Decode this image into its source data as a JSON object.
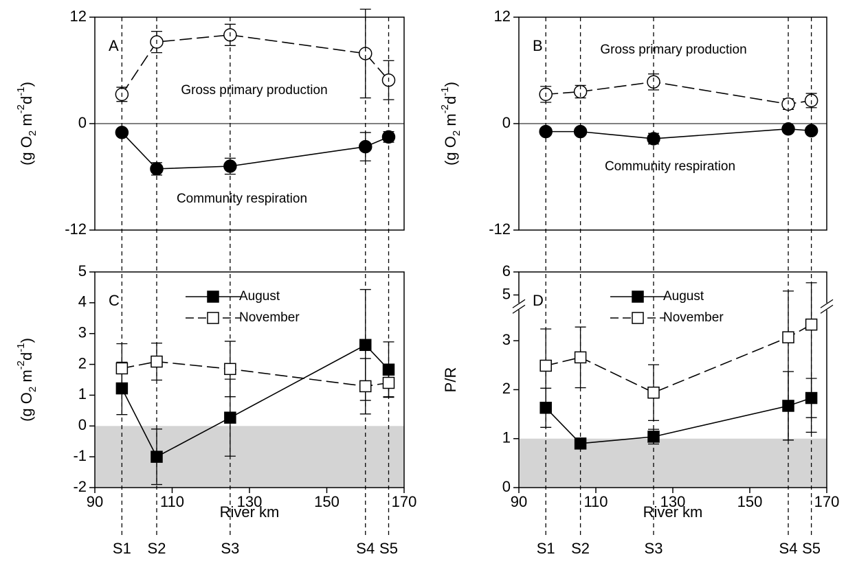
{
  "chart_data": [
    {
      "type": "line",
      "panel_label": "A",
      "x": [
        97,
        106,
        125,
        160,
        166
      ],
      "xlim": [
        90,
        170
      ],
      "ylim": [
        -12,
        12
      ],
      "yticks": [
        -12,
        0,
        12
      ],
      "zero_line": true,
      "ylabel": [
        {
          "text": "(g O",
          "shift": "base"
        },
        {
          "text": "2",
          "shift": "sub"
        },
        {
          "text": " m",
          "shift": "base"
        },
        {
          "text": "-2",
          "shift": "sup"
        },
        {
          "text": "d",
          "shift": "base"
        },
        {
          "text": "-1",
          "shift": "sup"
        },
        {
          "text": ")",
          "shift": "base"
        }
      ],
      "series": [
        {
          "name": "Gross primary production",
          "color": "#000000",
          "marker": "circle",
          "filled": false,
          "dashed": true,
          "values": [
            3.3,
            9.2,
            10.0,
            7.9,
            4.9
          ],
          "errors": [
            0.8,
            1.2,
            1.2,
            5.0,
            2.2
          ]
        },
        {
          "name": "Community respiration",
          "color": "#000000",
          "marker": "circle",
          "filled": true,
          "dashed": false,
          "values": [
            -1.0,
            -5.1,
            -4.8,
            -2.6,
            -1.5
          ],
          "errors": [
            0.3,
            0.7,
            0.9,
            1.6,
            0.6
          ]
        }
      ]
    },
    {
      "type": "line",
      "panel_label": "B",
      "x": [
        97,
        106,
        125,
        160,
        166
      ],
      "xlim": [
        90,
        170
      ],
      "ylim": [
        -12,
        12
      ],
      "yticks": [
        -12,
        0,
        12
      ],
      "zero_line": true,
      "ylabel": [
        {
          "text": "(g O",
          "shift": "base"
        },
        {
          "text": "2",
          "shift": "sub"
        },
        {
          "text": " m",
          "shift": "base"
        },
        {
          "text": "-2",
          "shift": "sup"
        },
        {
          "text": "d",
          "shift": "base"
        },
        {
          "text": "-1",
          "shift": "sup"
        },
        {
          "text": ")",
          "shift": "base"
        }
      ],
      "series": [
        {
          "name": "Gross primary production",
          "color": "#000000",
          "marker": "circle",
          "filled": false,
          "dashed": true,
          "values": [
            3.3,
            3.6,
            4.7,
            2.2,
            2.6
          ],
          "errors": [
            0.9,
            0.7,
            0.9,
            0.6,
            0.8
          ]
        },
        {
          "name": "Community respiration",
          "color": "#000000",
          "marker": "circle",
          "filled": true,
          "dashed": false,
          "values": [
            -0.9,
            -0.9,
            -1.7,
            -0.6,
            -0.8
          ],
          "errors": [
            0.3,
            0.3,
            0.6,
            0.3,
            0.3
          ]
        }
      ]
    },
    {
      "type": "line",
      "panel_label": "C",
      "x": [
        97,
        106,
        125,
        160,
        166
      ],
      "xlim": [
        90,
        170
      ],
      "xticks": [
        90,
        110,
        130,
        150,
        170
      ],
      "xlabel": "River km",
      "station_labels": [
        "S1",
        "S2",
        "S3",
        "S4",
        "S5"
      ],
      "ylim": [
        -2,
        5
      ],
      "yticks": [
        -2,
        -1,
        0,
        1,
        2,
        3,
        4,
        5
      ],
      "shade_below": 0,
      "legend": true,
      "ylabel": [
        {
          "text": "(g O",
          "shift": "base"
        },
        {
          "text": "2",
          "shift": "sub"
        },
        {
          "text": " m",
          "shift": "base"
        },
        {
          "text": "-2",
          "shift": "sup"
        },
        {
          "text": "d",
          "shift": "base"
        },
        {
          "text": "-1",
          "shift": "sup"
        },
        {
          "text": ")",
          "shift": "base"
        }
      ],
      "series": [
        {
          "name": "August",
          "color": "#000000",
          "marker": "square",
          "filled": true,
          "dashed": false,
          "values": [
            1.22,
            -1.0,
            0.27,
            2.63,
            1.83
          ],
          "errors": [
            0.85,
            0.9,
            1.25,
            1.8,
            0.9
          ]
        },
        {
          "name": "November",
          "color": "#000000",
          "marker": "square",
          "filled": false,
          "dashed": true,
          "values": [
            1.87,
            2.09,
            1.85,
            1.29,
            1.4
          ],
          "errors": [
            0.8,
            0.6,
            0.9,
            0.9,
            0.45
          ]
        }
      ]
    },
    {
      "type": "line",
      "panel_label": "D",
      "x": [
        97,
        106,
        125,
        160,
        166
      ],
      "xlim": [
        90,
        170
      ],
      "xticks": [
        90,
        110,
        130,
        150,
        170
      ],
      "xlabel": "River km",
      "station_labels": [
        "S1",
        "S2",
        "S3",
        "S4",
        "S5"
      ],
      "ylim": [
        0,
        6
      ],
      "yticks": [
        0,
        1,
        2,
        3,
        5,
        6
      ],
      "ybreak": [
        3.7,
        4.5
      ],
      "shade_below": 1,
      "legend": true,
      "ylabel": [
        {
          "text": "P/R",
          "shift": "base"
        }
      ],
      "series": [
        {
          "name": "August",
          "color": "#000000",
          "marker": "square",
          "filled": true,
          "dashed": false,
          "values": [
            1.63,
            0.9,
            1.04,
            1.67,
            1.83
          ],
          "errors": [
            0.4,
            0.1,
            0.15,
            0.7,
            0.4
          ]
        },
        {
          "name": "November",
          "color": "#000000",
          "marker": "square",
          "filled": false,
          "dashed": true,
          "values": [
            2.49,
            2.66,
            1.94,
            3.07,
            3.33
          ],
          "errors": [
            0.75,
            0.62,
            0.57,
            2.1,
            2.2
          ]
        }
      ]
    }
  ]
}
